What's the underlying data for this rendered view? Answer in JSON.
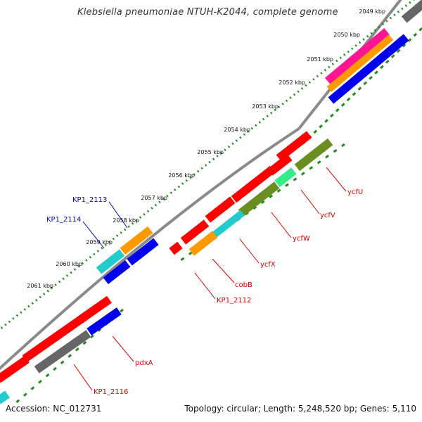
{
  "title": "Klebsiella pneumoniae NTUH-K2044, complete genome",
  "footer": {
    "accession": "Accession: NC_012731",
    "topology": "Topology: circular; Length: 5,248,520 bp; Genes: 5,110"
  },
  "ruler": {
    "labels": [
      "2049 kbp",
      "2050 kbp",
      "2051 kbp",
      "2052 kbp",
      "2053 kbp",
      "2054 kbp",
      "2055 kbp",
      "2056 kbp",
      "2057 kbp",
      "2058 kbp",
      "2059 kbp",
      "2060 kbp",
      "2061 kbp"
    ],
    "color": "#228B22"
  },
  "colors": {
    "backbone": "#8a8a8a",
    "red": "#ff0000",
    "blue": "#0000ee",
    "orange": "#ff9900",
    "cyan": "#22cccc",
    "olive": "#6b8e23",
    "green_light": "#33ee88",
    "grey": "#666666",
    "magenta": "#ff1493",
    "label_forward": "#dd0000",
    "label_reverse": "#0000cc"
  },
  "gene_labels": [
    {
      "name": "ycfU",
      "strand": "forward"
    },
    {
      "name": "ycfV",
      "strand": "forward"
    },
    {
      "name": "ycfW",
      "strand": "forward"
    },
    {
      "name": "ycfX",
      "strand": "forward"
    },
    {
      "name": "cobB",
      "strand": "forward"
    },
    {
      "name": "KP1_2112",
      "strand": "forward"
    },
    {
      "name": "pdxA",
      "strand": "forward"
    },
    {
      "name": "KP1_2116",
      "strand": "forward"
    },
    {
      "name": "KP1_2113",
      "strand": "reverse"
    },
    {
      "name": "KP1_2114",
      "strand": "reverse"
    }
  ]
}
